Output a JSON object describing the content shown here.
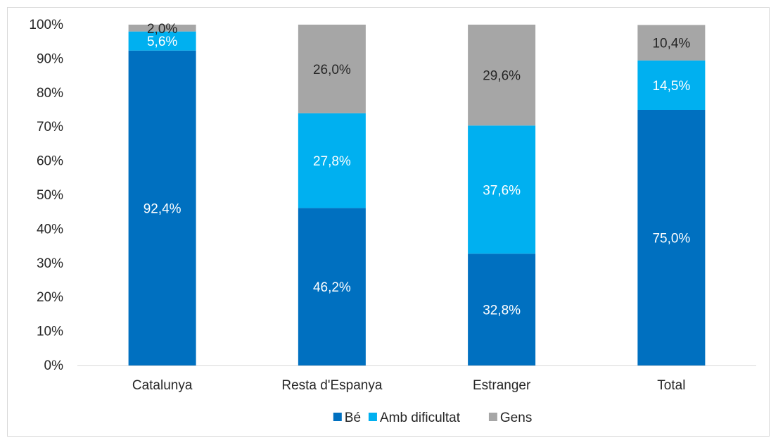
{
  "chart_data": {
    "type": "bar",
    "stacked": true,
    "percent_stacked": true,
    "categories": [
      "Catalunya",
      "Resta d'Espanya",
      "Estranger",
      "Total"
    ],
    "series": [
      {
        "name": "Bé",
        "values": [
          92.4,
          46.2,
          32.8,
          75.0
        ],
        "labels": [
          "92,4%",
          "46,2%",
          "32,8%",
          "75,0%"
        ],
        "color": "#0070c0",
        "label_color": "#ffffff"
      },
      {
        "name": "Amb dificultat",
        "values": [
          5.6,
          27.8,
          37.6,
          14.5
        ],
        "labels": [
          "5,6%",
          "27,8%",
          "37,6%",
          "14,5%"
        ],
        "color": "#00b0f0",
        "label_color": "#ffffff"
      },
      {
        "name": "Gens",
        "values": [
          2.0,
          26.0,
          29.6,
          10.4
        ],
        "labels": [
          "2,0%",
          "26,0%",
          "29,6%",
          "10,4%"
        ],
        "color": "#a6a6a6",
        "label_color": "#262626"
      }
    ],
    "ylim": [
      0,
      100
    ],
    "yticks": [
      0,
      10,
      20,
      30,
      40,
      50,
      60,
      70,
      80,
      90,
      100
    ],
    "ytick_labels": [
      "0%",
      "10%",
      "20%",
      "30%",
      "40%",
      "50%",
      "60%",
      "70%",
      "80%",
      "90%",
      "100%"
    ],
    "grid": false,
    "legend_position": "bottom"
  }
}
